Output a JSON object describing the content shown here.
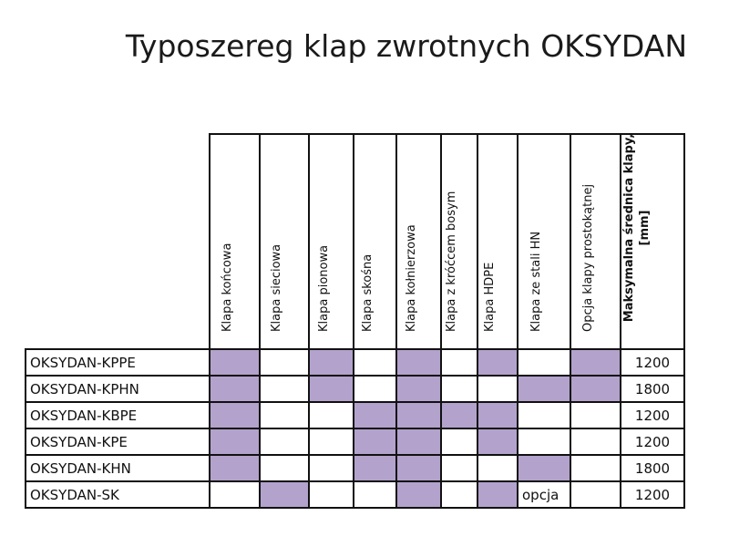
{
  "title": "Typoszereg klap zwrotnych OKSYDAN",
  "colors": {
    "filled_cell": "#b3a2cc",
    "grid_line": "#111111"
  },
  "columns": [
    "Klapa końcowa",
    "Klapa sieciowa",
    "Klapa pionowa",
    "Klapa skośna",
    "Klapa kołnierzowa",
    "Klapa z króćcem bosym",
    "Klapa HDPE",
    "Klapa ze stali HN",
    "Opcja klapy prostokątnej"
  ],
  "diameter_column": {
    "line1": "Maksymalna średnica klapy,",
    "line2": "[mm]"
  },
  "rows": [
    {
      "name": "OKSYDAN-KPPE",
      "cells": [
        true,
        false,
        true,
        false,
        true,
        false,
        true,
        false,
        true
      ],
      "note": "",
      "diameter": "1200"
    },
    {
      "name": "OKSYDAN-KPHN",
      "cells": [
        true,
        false,
        true,
        false,
        true,
        false,
        false,
        true,
        true
      ],
      "note": "",
      "diameter": "1800"
    },
    {
      "name": "OKSYDAN-KBPE",
      "cells": [
        true,
        false,
        false,
        true,
        true,
        true,
        true,
        false,
        false
      ],
      "note": "",
      "diameter": "1200"
    },
    {
      "name": "OKSYDAN-KPE",
      "cells": [
        true,
        false,
        false,
        true,
        true,
        false,
        true,
        false,
        false
      ],
      "note": "",
      "diameter": "1200"
    },
    {
      "name": "OKSYDAN-KHN",
      "cells": [
        true,
        false,
        false,
        true,
        true,
        false,
        false,
        true,
        false
      ],
      "note": "",
      "diameter": "1800"
    },
    {
      "name": "OKSYDAN-SK",
      "cells": [
        false,
        true,
        false,
        false,
        true,
        false,
        true,
        false,
        false
      ],
      "note": "opcja",
      "note_col": 7,
      "diameter": "1200"
    }
  ]
}
